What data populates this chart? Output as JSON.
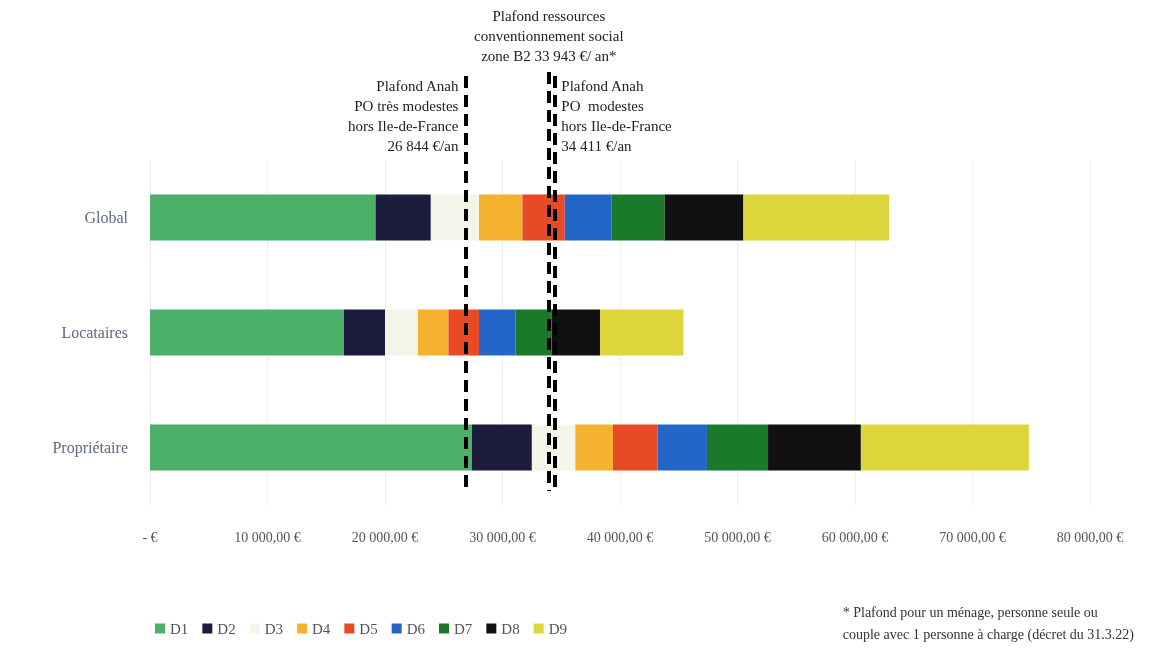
{
  "chart_data": {
    "type": "bar",
    "orientation": "horizontal",
    "stacked": true,
    "categories": [
      "Global",
      "Locataires",
      "Propriétaire"
    ],
    "series": [
      {
        "name": "D1",
        "color": "#4cb06a",
        "values": [
          19200,
          16500,
          27400
        ]
      },
      {
        "name": "D2",
        "color": "#1e1c3e",
        "values": [
          4700,
          3500,
          5100
        ]
      },
      {
        "name": "D3",
        "color": "#f5f4e8",
        "values": [
          4100,
          2800,
          3700
        ]
      },
      {
        "name": "D4",
        "color": "#f4b22e",
        "values": [
          3700,
          2600,
          3200
        ]
      },
      {
        "name": "D5",
        "color": "#e84a25",
        "values": [
          3600,
          2600,
          3800
        ]
      },
      {
        "name": "D6",
        "color": "#2466c8",
        "values": [
          4000,
          3100,
          4200
        ]
      },
      {
        "name": "D7",
        "color": "#1a7a2a",
        "values": [
          4500,
          3100,
          5200
        ]
      },
      {
        "name": "D8",
        "color": "#111111",
        "values": [
          6700,
          4100,
          7900
        ]
      },
      {
        "name": "D9",
        "color": "#dcd63c",
        "values": [
          12400,
          7100,
          14300
        ]
      }
    ],
    "xlim": [
      0,
      80000
    ],
    "xticks": [
      {
        "value": 0,
        "label": "- €"
      },
      {
        "value": 10000,
        "label": "10 000,00 €"
      },
      {
        "value": 20000,
        "label": "20 000,00 €"
      },
      {
        "value": 30000,
        "label": "30 000,00 €"
      },
      {
        "value": 40000,
        "label": "40 000,00 €"
      },
      {
        "value": 50000,
        "label": "50 000,00 €"
      },
      {
        "value": 60000,
        "label": "60 000,00 €"
      },
      {
        "value": 70000,
        "label": "70 000,00 €"
      },
      {
        "value": 80000,
        "label": "80 000,00 €"
      }
    ],
    "ref_lines": [
      {
        "axis": "x",
        "value": 26844,
        "label": "Plafond Anah\nPO très modestes\nhors Ile-de-France\n26 844 €/an",
        "color": "#000000",
        "line_style": "dashed"
      },
      {
        "axis": "x",
        "value": 33943,
        "label": "Plafond ressources\nconventionnement social\nzone B2 33 943 €/ an*",
        "color": "#000000",
        "line_style": "dashed"
      },
      {
        "axis": "x",
        "value": 34411,
        "label": "Plafond Anah\nPO  modestes\nhors Ile-de-France\n34 411 €/an",
        "color": "#000000",
        "line_style": "dashed"
      }
    ],
    "annotations": [
      "* Plafond pour un ménage, personne seule ou\ncouple avec 1 personne à charge (décret du 31.3.22)"
    ],
    "grid": "x",
    "legend": "bottom"
  }
}
